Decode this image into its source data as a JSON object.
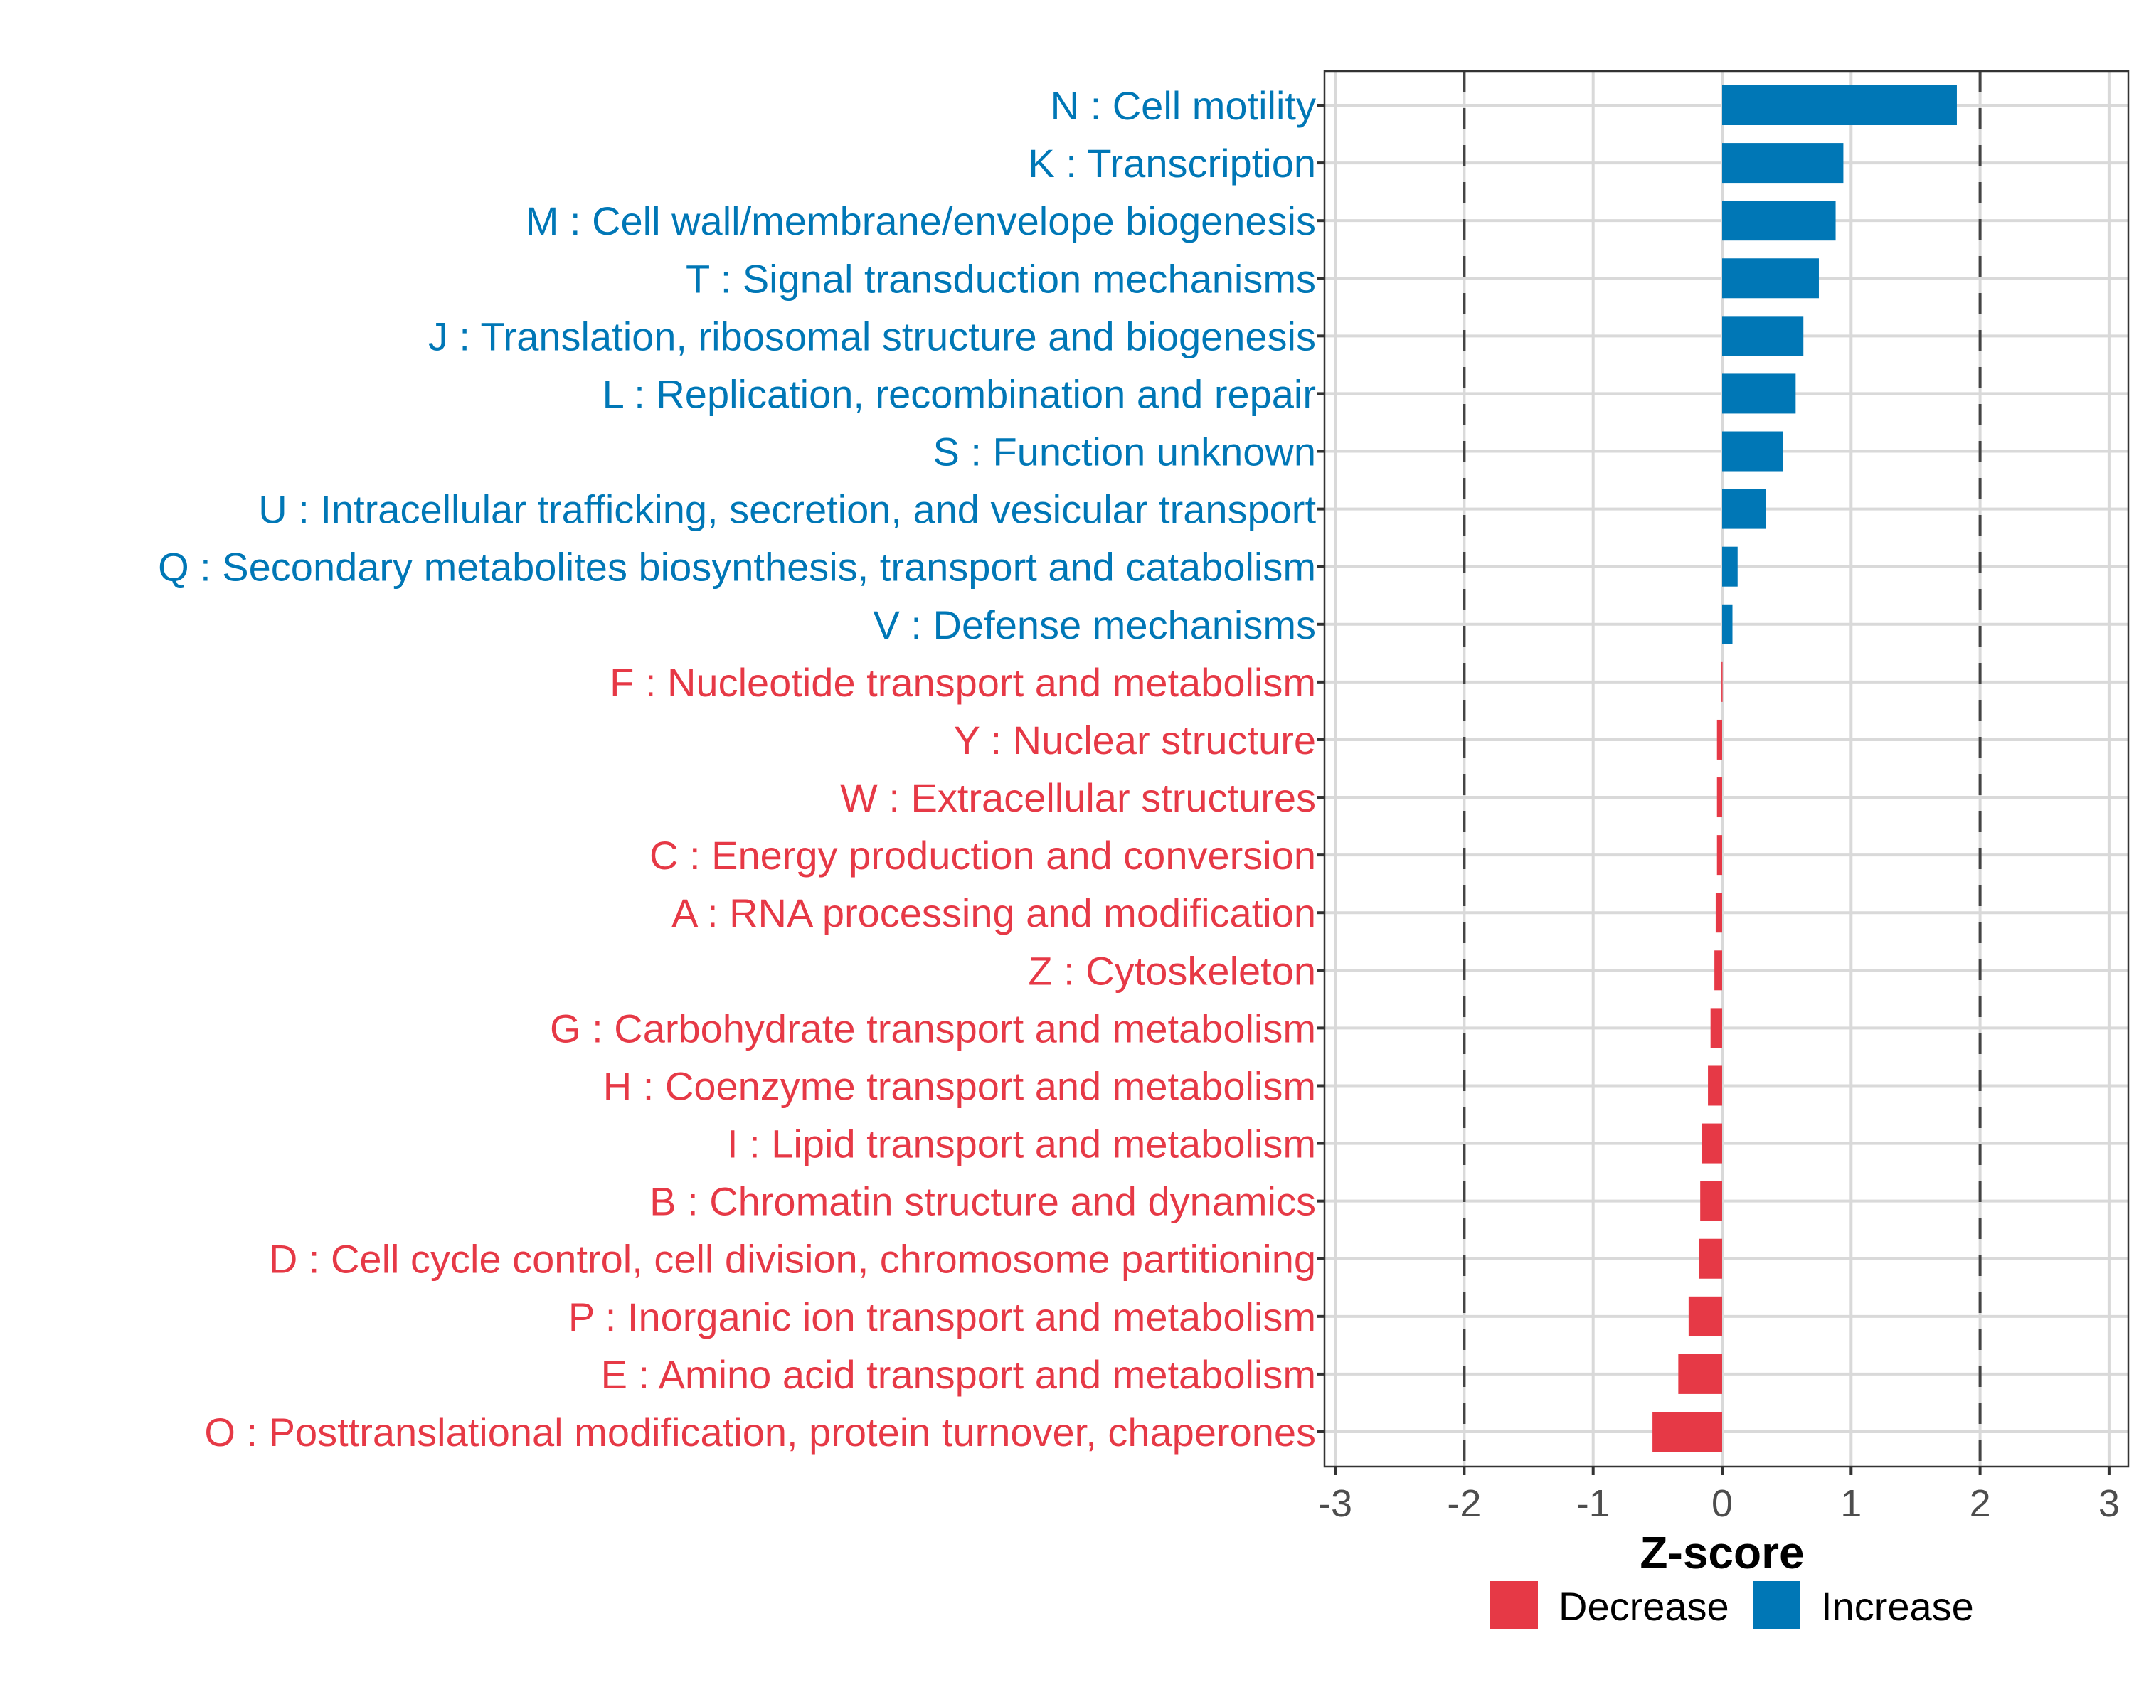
{
  "chart_data": {
    "type": "bar",
    "orientation": "horizontal",
    "title": "",
    "xlabel": "Z-score",
    "ylabel": "",
    "xlim": [
      -3.1,
      3.1
    ],
    "xticks": [
      -3,
      -2,
      -1,
      0,
      1,
      2,
      3
    ],
    "xtick_labels": [
      "-3",
      "-2",
      "-1",
      "0",
      "1",
      "2",
      "3"
    ],
    "reference_lines": [
      -2,
      2
    ],
    "grid": true,
    "legend": {
      "placement": "bottom",
      "entries": [
        {
          "label": "Decrease",
          "color": "#E63946"
        },
        {
          "label": "Increase",
          "color": "#0077B6"
        }
      ]
    },
    "categories": [
      "N : Cell motility",
      "K : Transcription",
      "M : Cell wall/membrane/envelope biogenesis",
      "T : Signal transduction mechanisms",
      "J : Translation, ribosomal structure and biogenesis",
      "L : Replication, recombination and repair",
      "S : Function unknown",
      "U : Intracellular trafficking, secretion, and vesicular transport",
      "Q : Secondary metabolites biosynthesis, transport and catabolism",
      "V : Defense mechanisms",
      "F : Nucleotide transport and metabolism",
      "Y : Nuclear structure",
      "W : Extracellular structures",
      "C : Energy production and conversion",
      "A : RNA processing and modification",
      "Z : Cytoskeleton",
      "G : Carbohydrate transport and metabolism",
      "H : Coenzyme transport and metabolism",
      "I : Lipid transport and metabolism",
      "B : Chromatin structure and dynamics",
      "D : Cell cycle control, cell division, chromosome partitioning",
      "P : Inorganic ion transport and metabolism",
      "E : Amino acid transport and metabolism",
      "O : Posttranslational modification, protein turnover, chaperones"
    ],
    "values": [
      1.82,
      0.94,
      0.88,
      0.75,
      0.63,
      0.57,
      0.47,
      0.34,
      0.12,
      0.08,
      -0.005,
      -0.04,
      -0.04,
      -0.04,
      -0.05,
      -0.06,
      -0.09,
      -0.11,
      -0.16,
      -0.17,
      -0.18,
      -0.26,
      -0.34,
      -0.54
    ],
    "groups": [
      "Increase",
      "Increase",
      "Increase",
      "Increase",
      "Increase",
      "Increase",
      "Increase",
      "Increase",
      "Increase",
      "Increase",
      "Decrease",
      "Decrease",
      "Decrease",
      "Decrease",
      "Decrease",
      "Decrease",
      "Decrease",
      "Decrease",
      "Decrease",
      "Decrease",
      "Decrease",
      "Decrease",
      "Decrease",
      "Decrease"
    ],
    "colors": {
      "Increase": "#0077B6",
      "Decrease": "#E63946"
    }
  }
}
